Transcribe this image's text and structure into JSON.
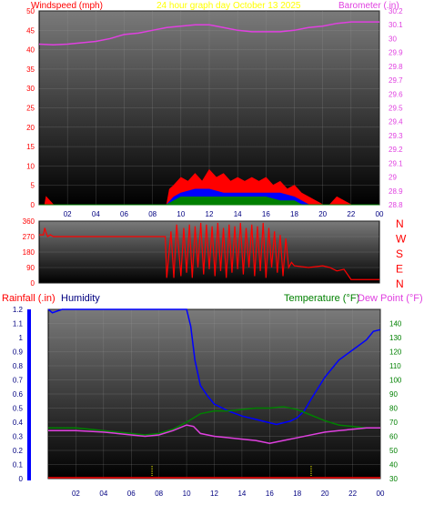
{
  "header": {
    "left_label": "Windspeed (mph)",
    "title": "24 hour graph day   October 13 2025",
    "right_label": "Barometer (.in)"
  },
  "colors": {
    "wind": "#ff0000",
    "gust": "#0000ff",
    "wind_low": "#008000",
    "barometer": "#e040e0",
    "direction": "#ff0000",
    "rain": "#ffff00",
    "humidity": "#0000ff",
    "temperature": "#008000",
    "dew_point": "#e040e0",
    "rain_bar": "#ffff00",
    "left_axis_text": "#ff0000",
    "right_axis_text": "#e040e0",
    "temp_axis_text": "#008000",
    "humidity_label": "#000080",
    "x_ticks": "#000080",
    "panel_bg_top": "#6e6e6e",
    "panel_bg_bottom": "#000000"
  },
  "chart_data": [
    {
      "type": "line",
      "name": "wind-barometer-panel",
      "x_ticks": [
        "02",
        "04",
        "06",
        "08",
        "10",
        "12",
        "14",
        "16",
        "18",
        "20",
        "22",
        "00"
      ],
      "xlim": [
        0,
        24
      ],
      "ylabel_left": "Windspeed (mph)",
      "ylim_left": [
        0,
        50
      ],
      "yticks_left": [
        "0",
        "5",
        "10",
        "15",
        "20",
        "25",
        "30",
        "35",
        "40",
        "45",
        "50"
      ],
      "ylabel_right": "Barometer (.in)",
      "ylim_right": [
        28.8,
        30.2
      ],
      "yticks_right": [
        "28.8",
        "28.9",
        "29",
        "29.1",
        "29.2",
        "29.3",
        "29.4",
        "29.5",
        "29.6",
        "29.7",
        "29.8",
        "29.9",
        "30",
        "30.1",
        "30.2"
      ],
      "series": [
        {
          "name": "Barometer (.in)",
          "axis": "right",
          "x": [
            0,
            1,
            2,
            3,
            4,
            5,
            6,
            7,
            8,
            9,
            10,
            11,
            12,
            13,
            14,
            15,
            16,
            17,
            18,
            19,
            20,
            21,
            22,
            23,
            24
          ],
          "y": [
            29.96,
            29.955,
            29.96,
            29.97,
            29.98,
            30.0,
            30.03,
            30.04,
            30.06,
            30.08,
            30.09,
            30.1,
            30.1,
            30.08,
            30.06,
            30.05,
            30.05,
            30.05,
            30.06,
            30.08,
            30.09,
            30.11,
            30.12,
            30.12,
            30.12
          ]
        },
        {
          "name": "Wind gust",
          "axis": "left",
          "x": [
            0,
            0.4,
            0.5,
            1,
            9,
            9.2,
            9.5,
            10,
            10.5,
            11,
            11.5,
            12,
            12.5,
            13,
            13.5,
            14,
            14.5,
            15,
            15.5,
            16,
            16.5,
            17,
            17.5,
            18,
            18.5,
            19,
            19.5,
            20,
            20.5,
            21,
            21.5,
            22,
            24
          ],
          "y": [
            0,
            0,
            2,
            0,
            0,
            4,
            5,
            7,
            6,
            8,
            6,
            9,
            7,
            8,
            6,
            7,
            6,
            7,
            6,
            7,
            5,
            6,
            4,
            5,
            3,
            2,
            1,
            0,
            0,
            2,
            1,
            0,
            0
          ]
        },
        {
          "name": "Wind average",
          "axis": "left",
          "x": [
            0,
            9,
            9.5,
            10,
            11,
            12,
            13,
            14,
            15,
            16,
            17,
            18,
            18.5,
            19,
            24
          ],
          "y": [
            0,
            0,
            2,
            3,
            4,
            4,
            3,
            3,
            3,
            3,
            3,
            2,
            1,
            0,
            0
          ]
        },
        {
          "name": "Wind low",
          "axis": "left",
          "x": [
            0,
            9,
            9.5,
            10,
            11,
            12,
            13,
            14,
            15,
            16,
            17,
            18,
            18.5,
            24
          ],
          "y": [
            0,
            0,
            1,
            2,
            2,
            2,
            2,
            2,
            2,
            2,
            1,
            1,
            0,
            0
          ]
        }
      ]
    },
    {
      "type": "line",
      "name": "wind-direction-panel",
      "x_ticks": [
        "02",
        "04",
        "06",
        "08",
        "10",
        "12",
        "14",
        "16",
        "18",
        "20",
        "22",
        "00"
      ],
      "xlim": [
        0,
        24
      ],
      "ylim": [
        0,
        360
      ],
      "yticks": [
        "0",
        "90",
        "180",
        "270",
        "360"
      ],
      "direction_labels": [
        "N",
        "W",
        "S",
        "E",
        "N"
      ],
      "series": [
        {
          "name": "Wind direction",
          "x": [
            0,
            0.3,
            0.4,
            0.5,
            0.6,
            0.8,
            1,
            8.9,
            9,
            9.3,
            9.5,
            9.7,
            10,
            10.2,
            10.4,
            10.6,
            10.8,
            11,
            11.2,
            11.4,
            11.6,
            11.8,
            12,
            12.2,
            12.4,
            12.6,
            12.8,
            13,
            13.2,
            13.4,
            13.6,
            13.8,
            14,
            14.2,
            14.4,
            14.6,
            14.8,
            15,
            15.2,
            15.4,
            15.6,
            15.8,
            16,
            16.2,
            16.4,
            16.6,
            16.8,
            17,
            17.2,
            17.4,
            17.6,
            17.8,
            18,
            19,
            20,
            20.5,
            21,
            21.5,
            22,
            23,
            24
          ],
          "y": [
            280,
            280,
            320,
            290,
            270,
            280,
            270,
            270,
            30,
            300,
            30,
            340,
            40,
            320,
            60,
            340,
            30,
            330,
            90,
            350,
            50,
            340,
            80,
            330,
            40,
            350,
            70,
            320,
            30,
            340,
            60,
            330,
            80,
            350,
            50,
            320,
            90,
            340,
            40,
            330,
            70,
            350,
            30,
            320,
            90,
            300,
            60,
            280,
            40,
            260,
            90,
            120,
            100,
            90,
            100,
            90,
            70,
            80,
            20,
            20,
            20
          ]
        }
      ]
    },
    {
      "type": "line",
      "name": "rain-humidity-temperature-panel",
      "x_ticks": [
        "02",
        "04",
        "06",
        "08",
        "10",
        "12",
        "14",
        "16",
        "18",
        "20",
        "22",
        "00"
      ],
      "xlim": [
        0,
        24
      ],
      "ylabel_left": "Rainfall (.in)",
      "ylim_left": [
        0,
        1.2
      ],
      "yticks_left": [
        "0",
        "0.1",
        "0.2",
        "0.3",
        "0.4",
        "0.5",
        "0.6",
        "0.7",
        "0.8",
        "0.9",
        "1",
        "1.1",
        "1.2"
      ],
      "humidity_label": "Humidity",
      "ylabel_right": "Temperature (°F)",
      "ylabel_right2": "Dew Point (°F)",
      "ylim_right": [
        30,
        150
      ],
      "yticks_right": [
        "30",
        "40",
        "50",
        "60",
        "70",
        "80",
        "90",
        "100",
        "110",
        "120",
        "130",
        "140"
      ],
      "rain_ticks_x": [
        7.5,
        19
      ],
      "series": [
        {
          "name": "Humidity",
          "axis": "percent",
          "x": [
            0,
            0.3,
            1,
            2,
            4,
            6,
            8,
            9,
            10,
            10.3,
            10.6,
            11,
            11.5,
            12,
            13,
            14,
            15,
            16,
            16.5,
            17,
            17.5,
            18,
            18.5,
            19,
            20,
            21,
            22,
            23,
            23.5,
            24
          ],
          "y": [
            100,
            98,
            100,
            100,
            100,
            100,
            100,
            100,
            100,
            90,
            70,
            55,
            49,
            44,
            40,
            37,
            35,
            33,
            32,
            33,
            34,
            36,
            40,
            47,
            60,
            70,
            76,
            82,
            87,
            88
          ]
        },
        {
          "name": "Temperature (°F)",
          "axis": "right",
          "x": [
            0,
            2,
            4,
            6,
            7,
            8,
            9,
            10,
            10.5,
            11,
            12,
            13,
            14,
            15,
            16,
            17,
            18,
            19,
            20,
            21,
            22,
            23,
            24
          ],
          "y": [
            66,
            66,
            64,
            62,
            61,
            62,
            65,
            70,
            73,
            76,
            78,
            78,
            79,
            80,
            80,
            81,
            79,
            75,
            71,
            68,
            67,
            66,
            66
          ]
        },
        {
          "name": "Dew Point (°F)",
          "axis": "right",
          "x": [
            0,
            2,
            4,
            6,
            7,
            8,
            9,
            10,
            10.5,
            11,
            12,
            13,
            14,
            15,
            16,
            17,
            18,
            19,
            20,
            21,
            22,
            23,
            24
          ],
          "y": [
            64,
            64,
            63,
            61,
            60,
            61,
            64,
            68,
            67,
            62,
            60,
            59,
            58,
            57,
            55,
            57,
            59,
            61,
            63,
            64,
            65,
            66,
            66
          ]
        }
      ]
    }
  ],
  "panel3_labels": {
    "rain_label": "Rainfall (.in)",
    "humidity_label": "Humidity",
    "temp_label": "Temperature (°F)",
    "dew_label": "Dew Point (°F)"
  }
}
